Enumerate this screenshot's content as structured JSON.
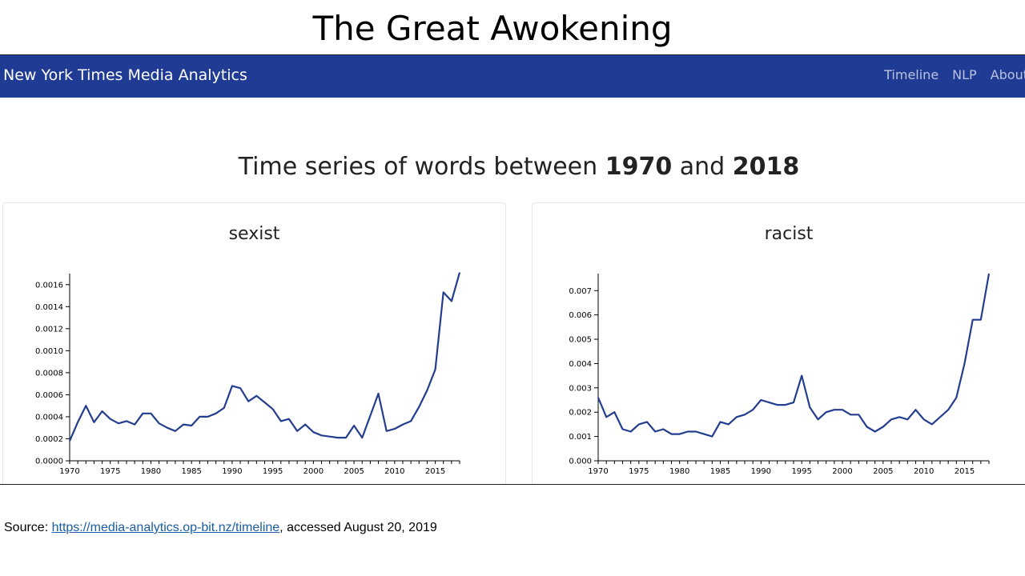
{
  "slide": {
    "title": "The Great Awokening"
  },
  "navbar": {
    "brand": "New York Times Media Analytics",
    "links": [
      "Timeline",
      "NLP",
      "About"
    ]
  },
  "heading": {
    "prefix": "Time series of words between",
    "start_year": "1970",
    "conjunction": "and",
    "end_year": "2018"
  },
  "footer": {
    "source_label": "Source: ",
    "source_url": "https://media-analytics.op-bit.nz/timeline",
    "accessed": ", accessed August 20, 2019"
  },
  "colors": {
    "navbar": "#1f3b94",
    "line": "#243e8f"
  },
  "chart_data": [
    {
      "type": "line",
      "title": "sexist",
      "xlabel": "",
      "ylabel": "",
      "xlim": [
        1970,
        2018
      ],
      "ylim": [
        0,
        0.0017
      ],
      "x_ticks": [
        1970,
        1975,
        1980,
        1985,
        1990,
        1995,
        2000,
        2005,
        2010,
        2015
      ],
      "y_ticks": [
        "0.0000",
        "0.0002",
        "0.0004",
        "0.0006",
        "0.0008",
        "0.0010",
        "0.0012",
        "0.0014",
        "0.0016"
      ],
      "grid": false,
      "legend": "none",
      "series": [
        {
          "x": [
            1970,
            1971,
            1972,
            1973,
            1974,
            1975,
            1976,
            1977,
            1978,
            1979,
            1980,
            1981,
            1982,
            1983,
            1984,
            1985,
            1986,
            1987,
            1988,
            1989,
            1990,
            1991,
            1992,
            1993,
            1994,
            1995,
            1996,
            1997,
            1998,
            1999,
            2000,
            2001,
            2002,
            2003,
            2004,
            2005,
            2006,
            2007,
            2008,
            2009,
            2010,
            2011,
            2012,
            2013,
            2014,
            2015,
            2016,
            2017,
            2018
          ],
          "y": [
            0.00018,
            0.00035,
            0.0005,
            0.00035,
            0.00045,
            0.00038,
            0.00034,
            0.00036,
            0.00033,
            0.00043,
            0.00043,
            0.00034,
            0.0003,
            0.00027,
            0.00033,
            0.00032,
            0.0004,
            0.0004,
            0.00043,
            0.00048,
            0.00068,
            0.00066,
            0.00054,
            0.00059,
            0.00053,
            0.00047,
            0.00036,
            0.00038,
            0.00027,
            0.00033,
            0.00026,
            0.00023,
            0.00022,
            0.00021,
            0.00021,
            0.00032,
            0.00021,
            0.00041,
            0.00061,
            0.00027,
            0.00029,
            0.00033,
            0.00036,
            0.00049,
            0.00064,
            0.00083,
            0.00153,
            0.00145,
            0.00171
          ]
        }
      ]
    },
    {
      "type": "line",
      "title": "racist",
      "xlabel": "",
      "ylabel": "",
      "xlim": [
        1970,
        2018
      ],
      "ylim": [
        0,
        0.0077
      ],
      "x_ticks": [
        1970,
        1975,
        1980,
        1985,
        1990,
        1995,
        2000,
        2005,
        2010,
        2015
      ],
      "y_ticks": [
        "0.000",
        "0.001",
        "0.002",
        "0.003",
        "0.004",
        "0.005",
        "0.006",
        "0.007"
      ],
      "grid": false,
      "legend": "none",
      "series": [
        {
          "x": [
            1970,
            1971,
            1972,
            1973,
            1974,
            1975,
            1976,
            1977,
            1978,
            1979,
            1980,
            1981,
            1982,
            1983,
            1984,
            1985,
            1986,
            1987,
            1988,
            1989,
            1990,
            1991,
            1992,
            1993,
            1994,
            1995,
            1996,
            1997,
            1998,
            1999,
            2000,
            2001,
            2002,
            2003,
            2004,
            2005,
            2006,
            2007,
            2008,
            2009,
            2010,
            2011,
            2012,
            2013,
            2014,
            2015,
            2016,
            2017,
            2018
          ],
          "y": [
            0.0026,
            0.0018,
            0.002,
            0.0013,
            0.0012,
            0.0015,
            0.0016,
            0.0012,
            0.0013,
            0.0011,
            0.0011,
            0.0012,
            0.0012,
            0.0011,
            0.001,
            0.0016,
            0.0015,
            0.0018,
            0.0019,
            0.0021,
            0.0025,
            0.0024,
            0.0023,
            0.0023,
            0.0024,
            0.0035,
            0.0022,
            0.0017,
            0.002,
            0.0021,
            0.0021,
            0.0019,
            0.0019,
            0.0014,
            0.0012,
            0.0014,
            0.0017,
            0.0018,
            0.0017,
            0.0021,
            0.0017,
            0.0015,
            0.0018,
            0.0021,
            0.0026,
            0.004,
            0.0058,
            0.0058,
            0.0077
          ]
        }
      ]
    }
  ]
}
